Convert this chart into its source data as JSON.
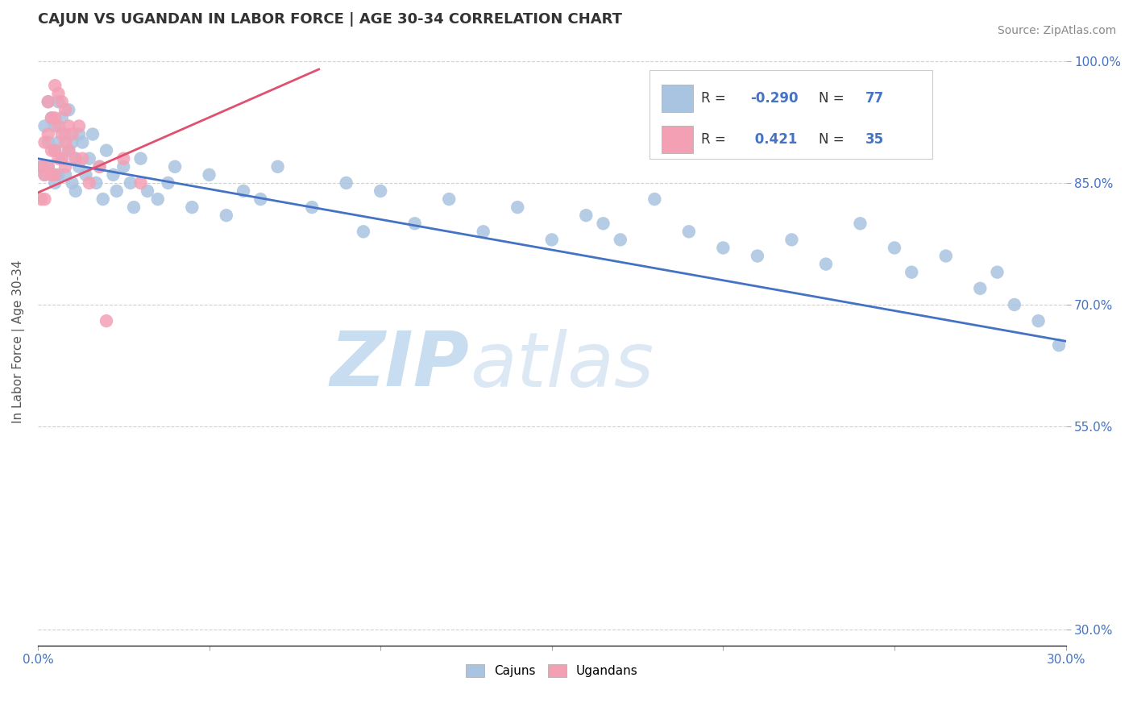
{
  "title": "CAJUN VS UGANDAN IN LABOR FORCE | AGE 30-34 CORRELATION CHART",
  "source_text": "Source: ZipAtlas.com",
  "ylabel": "In Labor Force | Age 30-34",
  "xlim": [
    0.0,
    0.3
  ],
  "ylim": [
    0.28,
    1.03
  ],
  "xticks": [
    0.0,
    0.05,
    0.1,
    0.15,
    0.2,
    0.25,
    0.3
  ],
  "xticklabels": [
    "0.0%",
    "",
    "",
    "",
    "",
    "",
    "30.0%"
  ],
  "yticks": [
    0.3,
    0.55,
    0.7,
    0.85,
    1.0
  ],
  "yticklabels": [
    "30.0%",
    "55.0%",
    "70.0%",
    "85.0%",
    "100.0%"
  ],
  "cajun_R": -0.29,
  "cajun_N": 77,
  "ugandan_R": 0.421,
  "ugandan_N": 35,
  "cajun_color": "#a8c4e0",
  "ugandan_color": "#f4a0b4",
  "cajun_line_color": "#4472c4",
  "ugandan_line_color": "#e05070",
  "watermark_zip": "ZIP",
  "watermark_atlas": "atlas",
  "watermark_color": "#c8ddf0",
  "legend_cajun_label": "Cajuns",
  "legend_ugandan_label": "Ugandans",
  "cajun_points_x": [
    0.001,
    0.002,
    0.002,
    0.003,
    0.003,
    0.003,
    0.004,
    0.004,
    0.005,
    0.005,
    0.005,
    0.006,
    0.006,
    0.006,
    0.007,
    0.007,
    0.008,
    0.008,
    0.009,
    0.009,
    0.01,
    0.01,
    0.011,
    0.011,
    0.012,
    0.012,
    0.013,
    0.014,
    0.015,
    0.016,
    0.017,
    0.018,
    0.019,
    0.02,
    0.022,
    0.023,
    0.025,
    0.027,
    0.028,
    0.03,
    0.032,
    0.035,
    0.038,
    0.04,
    0.045,
    0.05,
    0.055,
    0.06,
    0.065,
    0.07,
    0.08,
    0.09,
    0.095,
    0.1,
    0.11,
    0.12,
    0.13,
    0.14,
    0.15,
    0.16,
    0.165,
    0.17,
    0.18,
    0.19,
    0.2,
    0.21,
    0.22,
    0.23,
    0.24,
    0.25,
    0.255,
    0.265,
    0.275,
    0.28,
    0.285,
    0.292,
    0.298
  ],
  "cajun_points_y": [
    0.87,
    0.92,
    0.86,
    0.95,
    0.9,
    0.87,
    0.93,
    0.86,
    0.92,
    0.89,
    0.85,
    0.95,
    0.9,
    0.86,
    0.93,
    0.88,
    0.91,
    0.86,
    0.94,
    0.89,
    0.9,
    0.85,
    0.88,
    0.84,
    0.91,
    0.87,
    0.9,
    0.86,
    0.88,
    0.91,
    0.85,
    0.87,
    0.83,
    0.89,
    0.86,
    0.84,
    0.87,
    0.85,
    0.82,
    0.88,
    0.84,
    0.83,
    0.85,
    0.87,
    0.82,
    0.86,
    0.81,
    0.84,
    0.83,
    0.87,
    0.82,
    0.85,
    0.79,
    0.84,
    0.8,
    0.83,
    0.79,
    0.82,
    0.78,
    0.81,
    0.8,
    0.78,
    0.83,
    0.79,
    0.77,
    0.76,
    0.78,
    0.75,
    0.8,
    0.77,
    0.74,
    0.76,
    0.72,
    0.74,
    0.7,
    0.68,
    0.65
  ],
  "ugandan_points_x": [
    0.001,
    0.001,
    0.002,
    0.002,
    0.002,
    0.003,
    0.003,
    0.003,
    0.004,
    0.004,
    0.004,
    0.005,
    0.005,
    0.005,
    0.005,
    0.006,
    0.006,
    0.006,
    0.007,
    0.007,
    0.007,
    0.008,
    0.008,
    0.008,
    0.009,
    0.009,
    0.01,
    0.011,
    0.012,
    0.013,
    0.015,
    0.018,
    0.02,
    0.025,
    0.03
  ],
  "ugandan_points_y": [
    0.87,
    0.83,
    0.9,
    0.86,
    0.83,
    0.95,
    0.91,
    0.87,
    0.93,
    0.89,
    0.86,
    0.97,
    0.93,
    0.89,
    0.86,
    0.96,
    0.92,
    0.88,
    0.95,
    0.91,
    0.88,
    0.94,
    0.9,
    0.87,
    0.92,
    0.89,
    0.91,
    0.88,
    0.92,
    0.88,
    0.85,
    0.87,
    0.68,
    0.88,
    0.85
  ],
  "cajun_trendline_x0": 0.0,
  "cajun_trendline_x1": 0.3,
  "cajun_trendline_y0": 0.88,
  "cajun_trendline_y1": 0.655,
  "ugandan_trendline_x0": 0.0,
  "ugandan_trendline_x1": 0.082,
  "ugandan_trendline_y0": 0.838,
  "ugandan_trendline_y1": 0.99,
  "background_color": "#ffffff",
  "grid_color": "#cccccc",
  "title_color": "#333333",
  "axis_label_color": "#555555",
  "tick_color": "#4472c4"
}
